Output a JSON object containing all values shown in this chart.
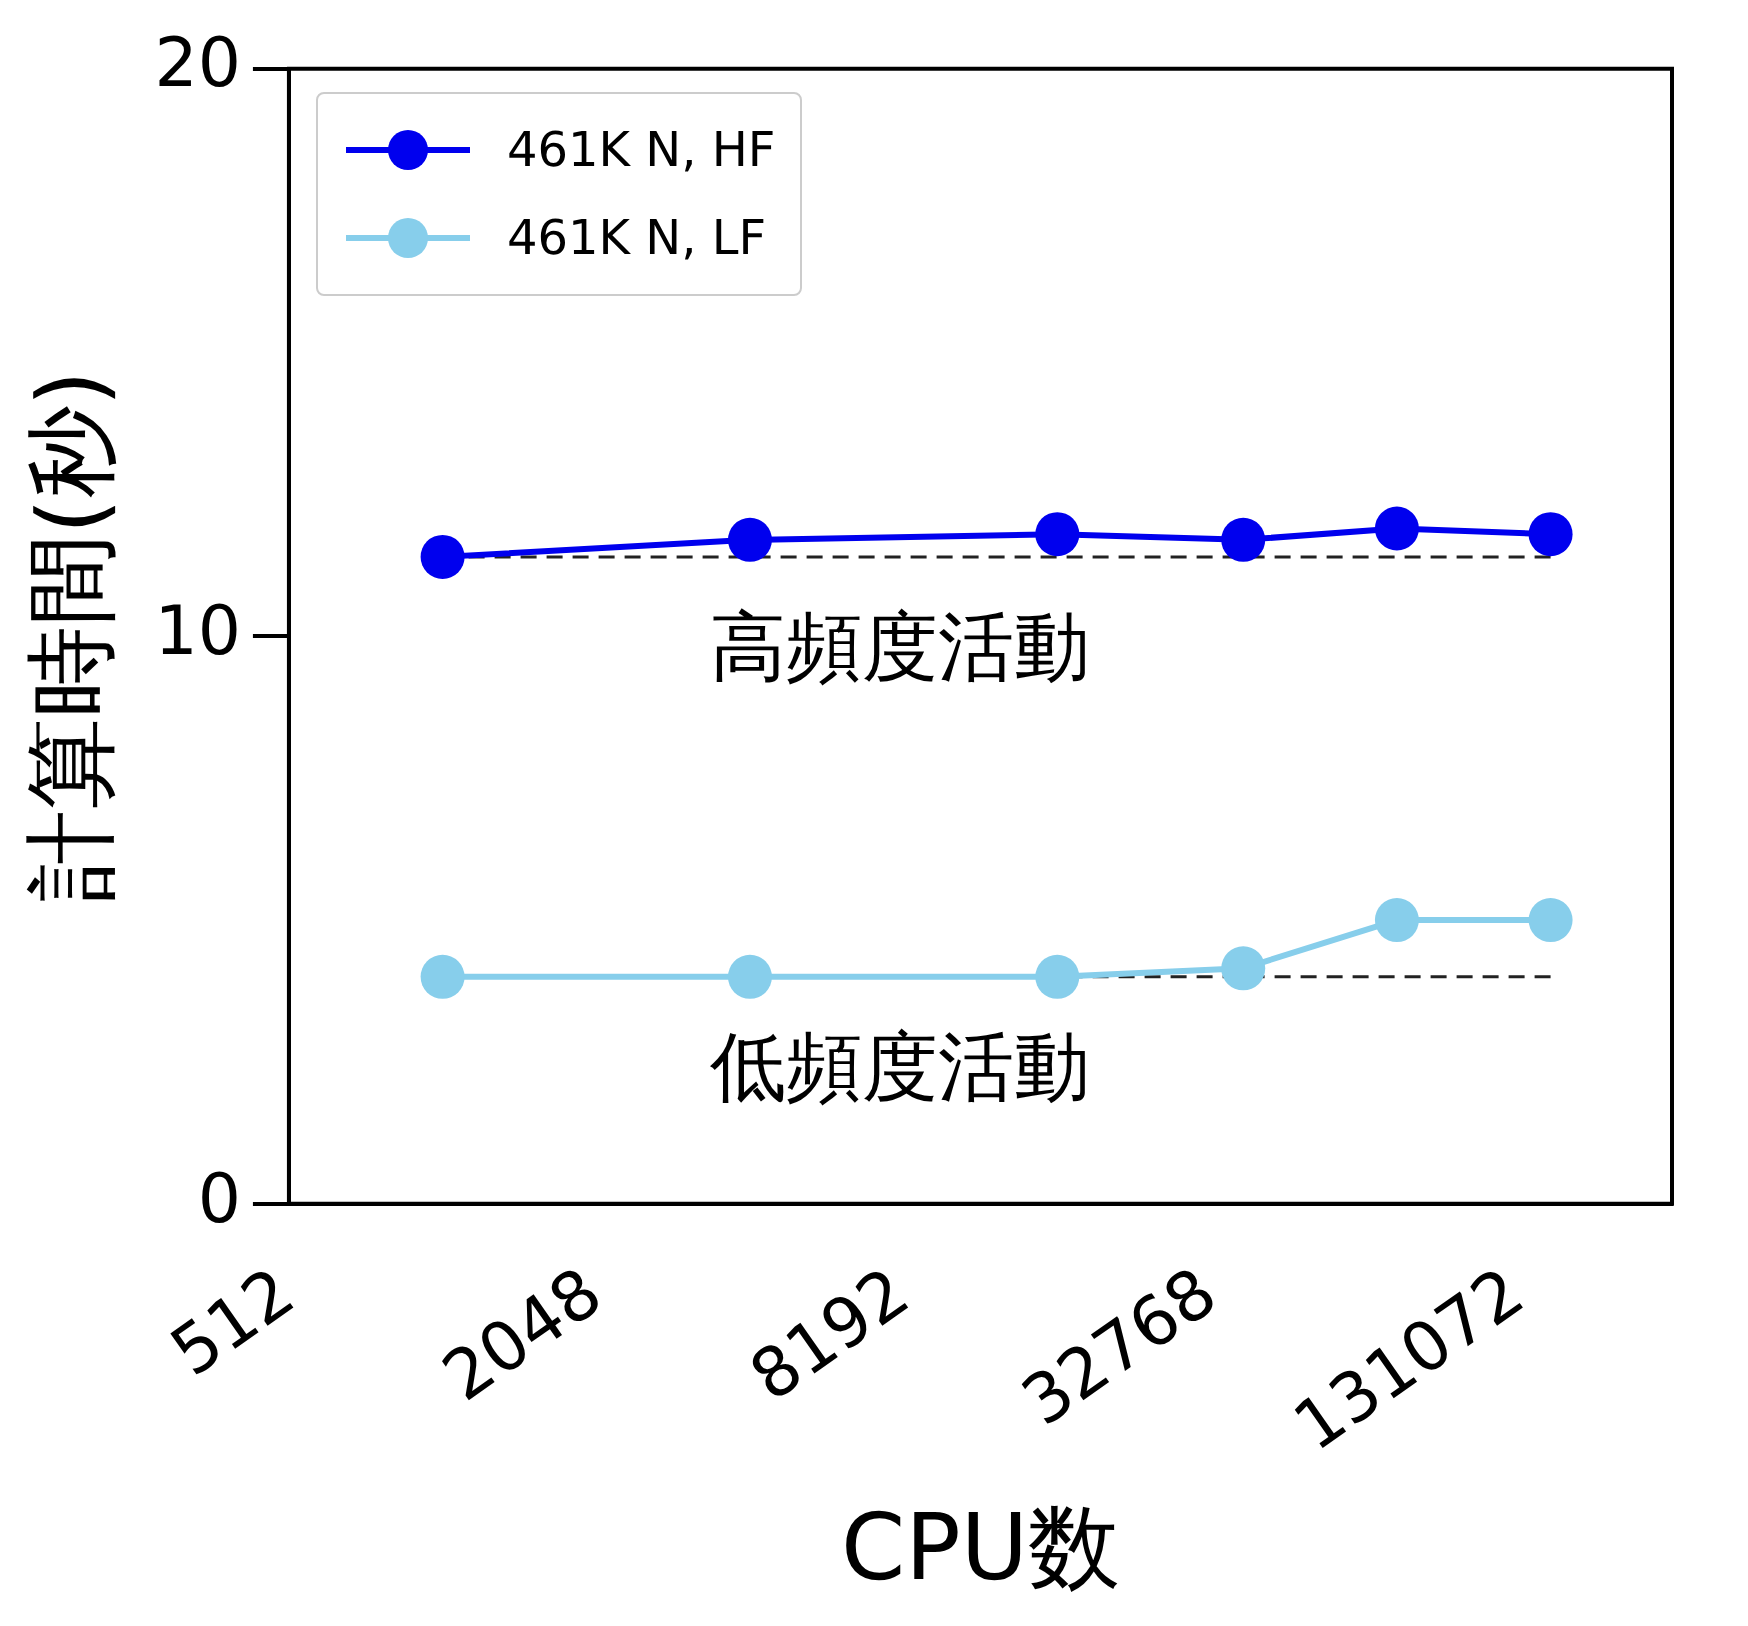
{
  "chart_data": {
    "type": "line",
    "xlabel": "CPU数",
    "ylabel": "計算時間(秒)",
    "log": "x",
    "xlim": [
      512,
      262144
    ],
    "xticks": [
      512,
      2048,
      8192,
      32768,
      131072
    ],
    "ylim": [
      0,
      20
    ],
    "yticks": [
      0,
      10,
      20
    ],
    "x": [
      1024,
      4096,
      16384,
      37900,
      75800,
      151600
    ],
    "series": [
      {
        "name": "461K N, HF",
        "color": "#0000ee",
        "values": [
          11.4,
          11.7,
          11.8,
          11.7,
          11.9,
          11.8
        ]
      },
      {
        "name": "461K N, LF",
        "color": "#87ceeb",
        "values": [
          4.0,
          4.0,
          4.0,
          4.15,
          5.0,
          5.0
        ]
      }
    ],
    "ref_lines": [
      {
        "axis": "y",
        "value": 11.4,
        "color": "#222222",
        "line_style": "dashed"
      },
      {
        "axis": "y",
        "value": 4.0,
        "color": "#222222",
        "line_style": "dashed"
      }
    ],
    "annotations": [
      "高頻度活動",
      "低頻度活動"
    ],
    "marker": "circle",
    "line_style": "solid",
    "grid": false,
    "legend": "top left"
  }
}
